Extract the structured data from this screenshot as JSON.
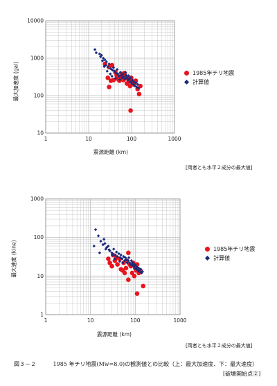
{
  "charts": [
    {
      "ylabel": "最大加速度 (gal)",
      "xlabel": "震源距離 (km)",
      "note": "[両者とも水平２成分の最大値]",
      "legend": [
        {
          "label": "1985年チリ地震",
          "marker": "red-circle"
        },
        {
          "label": "計算値",
          "marker": "navy-diamond"
        }
      ],
      "xticks": [
        "1",
        "10",
        "100",
        "1000"
      ],
      "yticks": [
        "10",
        "100",
        "1000",
        "10000"
      ]
    },
    {
      "ylabel": "最大速度 (kine)",
      "xlabel": "震源距離 (km)",
      "note": "[両者とも水平２成分の最大値]",
      "legend": [
        {
          "label": "1985年チリ地震",
          "marker": "red-circle"
        },
        {
          "label": "計算値",
          "marker": "navy-diamond"
        }
      ],
      "xticks": [
        "1",
        "10",
        "100",
        "1000"
      ],
      "yticks": [
        "1",
        "10",
        "100",
        "1000"
      ]
    }
  ],
  "caption": {
    "figure": "図３－２",
    "text": "1985 年チリ地震(Mw=8.0)の観測値との比較（上：最大加速度、下：最大速度）",
    "subtext": "[破壊開始点②]"
  },
  "colors": {
    "observed": "#e8141e",
    "computed": "#1a2a7a",
    "grid": "#bdbdbd"
  },
  "chart_data": [
    {
      "type": "scatter",
      "xscale": "log",
      "yscale": "log",
      "xlim": [
        1,
        1000
      ],
      "ylim": [
        10,
        10000
      ],
      "grid": true,
      "legend_position": "right",
      "xlabel": "震源距離 (km)",
      "ylabel": "最大加速度 (gal)",
      "series": [
        {
          "name": "1985年チリ地震",
          "marker": "circle",
          "color": "#e8141e",
          "points": [
            [
              24,
              700
            ],
            [
              28,
              300
            ],
            [
              30,
              580
            ],
            [
              33,
              250
            ],
            [
              35,
              650
            ],
            [
              38,
              260
            ],
            [
              30,
              170
            ],
            [
              42,
              420
            ],
            [
              45,
              350
            ],
            [
              48,
              280
            ],
            [
              52,
              250
            ],
            [
              55,
              300
            ],
            [
              58,
              380
            ],
            [
              62,
              310
            ],
            [
              65,
              260
            ],
            [
              68,
              400
            ],
            [
              72,
              330
            ],
            [
              78,
              210
            ],
            [
              82,
              280
            ],
            [
              88,
              240
            ],
            [
              92,
              180
            ],
            [
              98,
              300
            ],
            [
              104,
              230
            ],
            [
              112,
              200
            ],
            [
              125,
              250
            ],
            [
              138,
              150
            ],
            [
              150,
              110
            ],
            [
              160,
              180
            ],
            [
              95,
              40
            ]
          ]
        },
        {
          "name": "計算値",
          "marker": "diamond",
          "color": "#1a2a7a",
          "points": [
            [
              14,
              1700
            ],
            [
              15,
              1400
            ],
            [
              18,
              1300
            ],
            [
              20,
              1200
            ],
            [
              22,
              1000
            ],
            [
              24,
              900
            ],
            [
              26,
              800
            ],
            [
              19,
              1100
            ],
            [
              21,
              850
            ],
            [
              25,
              650
            ],
            [
              28,
              580
            ],
            [
              30,
              700
            ],
            [
              33,
              520
            ],
            [
              36,
              480
            ],
            [
              38,
              560
            ],
            [
              40,
              450
            ],
            [
              43,
              400
            ],
            [
              46,
              500
            ],
            [
              48,
              380
            ],
            [
              51,
              330
            ],
            [
              55,
              420
            ],
            [
              58,
              350
            ],
            [
              60,
              300
            ],
            [
              63,
              380
            ],
            [
              66,
              320
            ],
            [
              70,
              280
            ],
            [
              72,
              420
            ],
            [
              75,
              350
            ],
            [
              78,
              300
            ],
            [
              82,
              260
            ],
            [
              85,
              340
            ],
            [
              88,
              280
            ],
            [
              92,
              230
            ],
            [
              95,
              300
            ],
            [
              98,
              240
            ],
            [
              102,
              210
            ],
            [
              106,
              260
            ],
            [
              110,
              200
            ],
            [
              115,
              230
            ],
            [
              120,
              180
            ],
            [
              126,
              220
            ],
            [
              132,
              170
            ],
            [
              138,
              200
            ],
            [
              145,
              160
            ],
            [
              23,
              600
            ],
            [
              27,
              450
            ],
            [
              32,
              380
            ],
            [
              35,
              330
            ],
            [
              42,
              290
            ],
            [
              53,
              270
            ]
          ]
        }
      ]
    },
    {
      "type": "scatter",
      "xscale": "log",
      "yscale": "log",
      "xlim": [
        1,
        1000
      ],
      "ylim": [
        1,
        1000
      ],
      "grid": true,
      "legend_position": "right",
      "xlabel": "震源距離 (km)",
      "ylabel": "最大速度 (kine)",
      "series": [
        {
          "name": "1985年チリ地震",
          "marker": "circle",
          "color": "#e8141e",
          "points": [
            [
              25,
              28
            ],
            [
              27,
              22
            ],
            [
              30,
              18
            ],
            [
              32,
              35
            ],
            [
              35,
              25
            ],
            [
              38,
              30
            ],
            [
              40,
              20
            ],
            [
              45,
              28
            ],
            [
              48,
              15
            ],
            [
              52,
              14
            ],
            [
              55,
              22
            ],
            [
              58,
              12
            ],
            [
              62,
              16
            ],
            [
              65,
              25
            ],
            [
              70,
              40
            ],
            [
              75,
              20
            ],
            [
              80,
              18
            ],
            [
              85,
              12
            ],
            [
              90,
              22
            ],
            [
              95,
              10
            ],
            [
              100,
              16
            ],
            [
              105,
              14
            ],
            [
              110,
              20
            ],
            [
              120,
              12
            ],
            [
              130,
              14
            ],
            [
              150,
              5.5
            ],
            [
              110,
              3.5
            ],
            [
              70,
              8
            ]
          ]
        },
        {
          "name": "計算値",
          "marker": "diamond",
          "color": "#1a2a7a",
          "points": [
            [
              13,
              160
            ],
            [
              15,
              110
            ],
            [
              17,
              80
            ],
            [
              19,
              65
            ],
            [
              21,
              70
            ],
            [
              23,
              55
            ],
            [
              25,
              60
            ],
            [
              20,
              90
            ],
            [
              22,
              50
            ],
            [
              27,
              45
            ],
            [
              30,
              40
            ],
            [
              33,
              50
            ],
            [
              36,
              35
            ],
            [
              38,
              42
            ],
            [
              40,
              32
            ],
            [
              43,
              38
            ],
            [
              46,
              30
            ],
            [
              48,
              35
            ],
            [
              51,
              28
            ],
            [
              55,
              32
            ],
            [
              58,
              25
            ],
            [
              60,
              30
            ],
            [
              63,
              27
            ],
            [
              66,
              22
            ],
            [
              70,
              25
            ],
            [
              72,
              30
            ],
            [
              75,
              22
            ],
            [
              78,
              20
            ],
            [
              82,
              25
            ],
            [
              85,
              19
            ],
            [
              88,
              22
            ],
            [
              92,
              18
            ],
            [
              95,
              20
            ],
            [
              98,
              16
            ],
            [
              102,
              19
            ],
            [
              106,
              15
            ],
            [
              110,
              17
            ],
            [
              115,
              14
            ],
            [
              120,
              16
            ],
            [
              126,
              13
            ],
            [
              132,
              15
            ],
            [
              138,
              12
            ],
            [
              145,
              13
            ],
            [
              26,
              48
            ],
            [
              31,
              35
            ],
            [
              35,
              28
            ],
            [
              45,
              24
            ],
            [
              53,
              22
            ],
            [
              12,
              60
            ],
            [
              16,
              40
            ]
          ]
        }
      ]
    }
  ]
}
